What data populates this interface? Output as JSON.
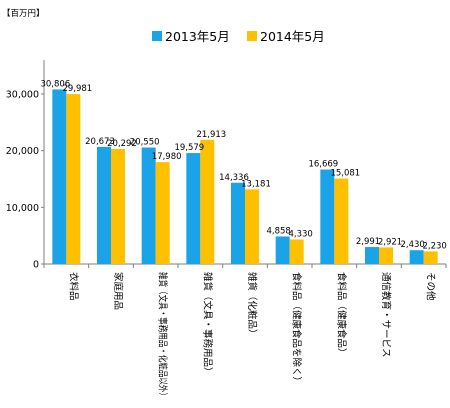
{
  "chart_data": {
    "type": "bar",
    "unit_label": "【百万円】",
    "categories": [
      "衣料品",
      "家庭用品",
      "雑貨（文具・事務用品・化粧品以外）",
      "雑貨（文具・事務用品）",
      "雑貨（化粧品）",
      "食料品（健康食品を除く）",
      "食料品（健康食品）",
      "通信教育・サービス",
      "その他"
    ],
    "series": [
      {
        "name": "2013年5月",
        "color": "#1aa3e6",
        "values": [
          30806,
          20673,
          20550,
          19579,
          14336,
          4858,
          16669,
          2991,
          2430
        ]
      },
      {
        "name": "2014年5月",
        "color": "#ffc000",
        "values": [
          29981,
          20292,
          17980,
          21913,
          13181,
          4330,
          15081,
          2921,
          2230
        ]
      }
    ],
    "value_labels": [
      [
        "30,806",
        "20,673",
        "20,550",
        "19,579",
        "14,336",
        "4,858",
        "16,669",
        "2,991",
        "2,430"
      ],
      [
        "29,981",
        "20,292",
        "17,980",
        "21,913",
        "13,181",
        "4,330",
        "15,081",
        "2,921",
        "2,230"
      ]
    ],
    "yticks": [
      0,
      10000,
      20000,
      30000
    ],
    "ytick_labels": [
      "0",
      "10,000",
      "20,000",
      "30,000"
    ],
    "ylim": [
      0,
      36000
    ],
    "grid": false,
    "legend": "top-center",
    "title": "",
    "xlabel": "",
    "ylabel": ""
  }
}
